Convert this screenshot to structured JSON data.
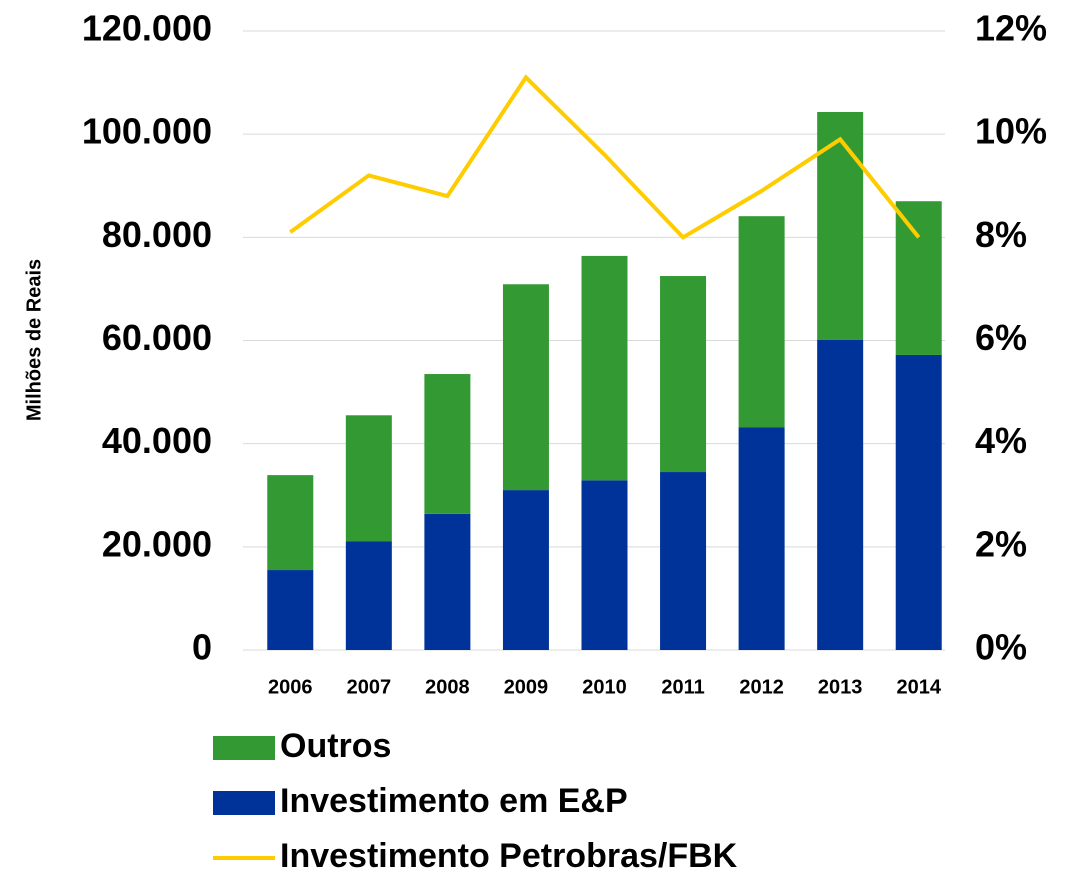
{
  "chart_data": {
    "type": "bar",
    "categories": [
      "2006",
      "2007",
      "2008",
      "2009",
      "2010",
      "2011",
      "2012",
      "2013",
      "2014"
    ],
    "stacked": true,
    "series": [
      {
        "name": "Investimento em E&P",
        "color": "#003399",
        "values": [
          15500,
          21100,
          26400,
          31000,
          32900,
          34500,
          43200,
          60100,
          57200
        ]
      },
      {
        "name": "Outros",
        "color": "#339933",
        "values": [
          18400,
          24400,
          27100,
          39900,
          43500,
          38000,
          40900,
          44200,
          29800
        ]
      },
      {
        "name": "Investimento Petrobras/FBK",
        "type": "line",
        "axis": "y2",
        "color": "#ffcc00",
        "values": [
          8.1,
          9.2,
          8.8,
          11.1,
          9.6,
          8.0,
          8.9,
          9.9,
          8.0
        ]
      }
    ],
    "y_label": "Milhões de Reais",
    "ylim": [
      0,
      120000
    ],
    "yticks": [
      0,
      {
        "value": 20000,
        "label": "20.000"
      },
      {
        "value": 40000,
        "label": "40.000"
      },
      {
        "value": 60000,
        "label": "60.000"
      },
      {
        "value": 80000,
        "label": "80.000"
      },
      {
        "value": 100000,
        "label": "100.000"
      },
      {
        "value": 120000,
        "label": "120.000"
      }
    ],
    "y2lim": [
      0,
      12
    ],
    "y2ticks": [
      {
        "value": 0,
        "label": "0%"
      },
      {
        "value": 2,
        "label": "2%"
      },
      {
        "value": 4,
        "label": "4%"
      },
      {
        "value": 6,
        "label": "6%"
      },
      {
        "value": 8,
        "label": "8%"
      },
      {
        "value": 10,
        "label": "10%"
      },
      {
        "value": 12,
        "label": "12%"
      }
    ],
    "grid": true
  }
}
